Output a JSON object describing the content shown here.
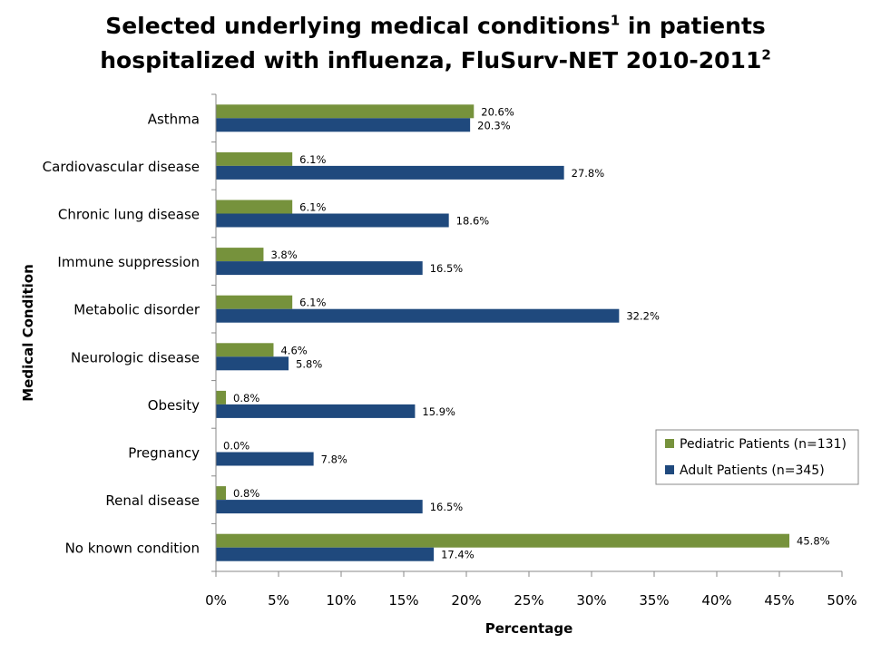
{
  "chart_data": {
    "type": "bar",
    "orientation": "horizontal",
    "title_line1": "Selected underlying medical conditions",
    "title_sup1": "1",
    "title_mid": " in patients",
    "title_line2": "hospitalized with influenza, FluSurv-NET 2010-2011",
    "title_sup2": "2",
    "xlabel": "Percentage",
    "ylabel": "Medical Condition",
    "xlim": [
      0,
      50
    ],
    "x_ticks": [
      "0%",
      "5%",
      "10%",
      "15%",
      "20%",
      "25%",
      "30%",
      "35%",
      "40%",
      "45%",
      "50%"
    ],
    "grid": false,
    "legend_position": "right",
    "categories": [
      "Asthma",
      "Cardiovascular disease",
      "Chronic lung disease",
      "Immune suppression",
      "Metabolic disorder",
      "Neurologic disease",
      "Obesity",
      "Pregnancy",
      "Renal disease",
      "No known condition"
    ],
    "series": [
      {
        "name": "Pediatric Patients (n=131)",
        "color": "#76923c",
        "values": [
          20.6,
          6.1,
          6.1,
          3.8,
          6.1,
          4.6,
          0.8,
          0.0,
          0.8,
          45.8
        ],
        "labels": [
          "20.6%",
          "6.1%",
          "6.1%",
          "3.8%",
          "6.1%",
          "4.6%",
          "0.8%",
          "0.0%",
          "0.8%",
          "45.8%"
        ]
      },
      {
        "name": "Adult Patients (n=345)",
        "color": "#1f497d",
        "values": [
          20.3,
          27.8,
          18.6,
          16.5,
          32.2,
          5.8,
          15.9,
          7.8,
          16.5,
          17.4
        ],
        "labels": [
          "20.3%",
          "27.8%",
          "18.6%",
          "16.5%",
          "32.2%",
          "5.8%",
          "15.9%",
          "7.8%",
          "16.5%",
          "17.4%"
        ]
      }
    ]
  }
}
